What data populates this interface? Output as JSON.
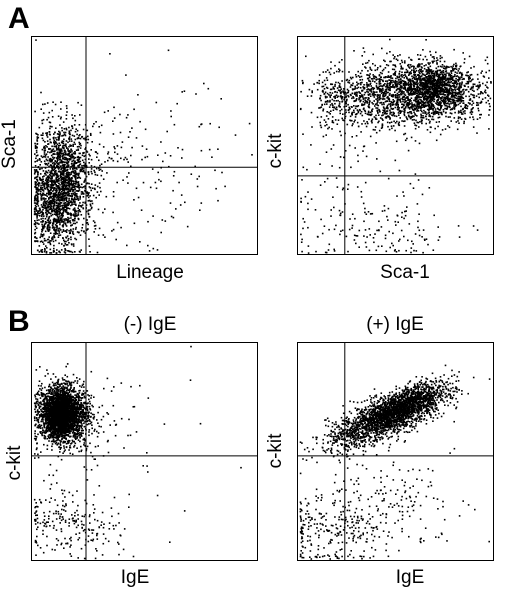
{
  "panel_letters": [
    "A",
    "B"
  ],
  "chart_data": [
    {
      "type": "scatter",
      "panel": "A",
      "title": "",
      "xlabel": "Lineage",
      "ylabel": "Sca-1",
      "xlim": [
        0,
        100
      ],
      "ylim": [
        0,
        100
      ],
      "gates": {
        "x": 24,
        "y": 40
      },
      "populations": [
        {
          "cx": 13,
          "cy": 34,
          "sx": 7,
          "sy": 13,
          "n": 1600
        },
        {
          "cx": 10,
          "cy": 18,
          "sx": 6,
          "sy": 9,
          "n": 450
        },
        {
          "cx": 40,
          "cy": 42,
          "sx": 20,
          "sy": 18,
          "n": 160
        },
        {
          "cx": 70,
          "cy": 38,
          "sx": 18,
          "sy": 20,
          "n": 35
        }
      ]
    },
    {
      "type": "scatter",
      "panel": "A",
      "title": "",
      "xlabel": "Sca-1",
      "ylabel": "c-kit",
      "xlim": [
        0,
        100
      ],
      "ylim": [
        0,
        100
      ],
      "gates": {
        "x": 24,
        "y": 36
      },
      "populations": [
        {
          "cx": 58,
          "cy": 74,
          "sx": 20,
          "sy": 7,
          "n": 1900
        },
        {
          "cx": 70,
          "cy": 78,
          "sx": 8,
          "sy": 5,
          "n": 700
        },
        {
          "cx": 20,
          "cy": 70,
          "sx": 8,
          "sy": 6,
          "n": 160
        },
        {
          "cx": 35,
          "cy": 14,
          "sx": 22,
          "sy": 10,
          "n": 170
        },
        {
          "cx": 30,
          "cy": 50,
          "sx": 18,
          "sy": 10,
          "n": 60
        }
      ]
    },
    {
      "type": "scatter",
      "panel": "B",
      "title": "(-) IgE",
      "xlabel": "IgE",
      "ylabel": "c-kit",
      "xlim": [
        0,
        100
      ],
      "ylim": [
        0,
        100
      ],
      "gates": {
        "x": 24,
        "y": 48
      },
      "populations": [
        {
          "cx": 13,
          "cy": 68,
          "sx": 5,
          "sy": 6,
          "n": 2500
        },
        {
          "cx": 12,
          "cy": 67,
          "sx": 2.5,
          "sy": 4,
          "n": 900
        },
        {
          "cx": 18,
          "cy": 65,
          "sx": 10,
          "sy": 10,
          "n": 250
        },
        {
          "cx": 15,
          "cy": 18,
          "sx": 12,
          "sy": 8,
          "n": 220
        },
        {
          "cx": 50,
          "cy": 50,
          "sx": 18,
          "sy": 25,
          "n": 25
        }
      ]
    },
    {
      "type": "scatter",
      "panel": "B",
      "title": "(+) IgE",
      "xlabel": "IgE",
      "ylabel": "c-kit",
      "xlim": [
        0,
        100
      ],
      "ylim": [
        0,
        100
      ],
      "gates": {
        "x": 24,
        "y": 48
      },
      "populations": [
        {
          "cx": 45,
          "cy": 66,
          "sx": 15,
          "sy": 7,
          "n": 1700,
          "corr": 0.75
        },
        {
          "cx": 55,
          "cy": 72,
          "sx": 10,
          "sy": 5,
          "n": 900,
          "corr": 0.7
        },
        {
          "cx": 15,
          "cy": 14,
          "sx": 13,
          "sy": 9,
          "n": 220
        },
        {
          "cx": 40,
          "cy": 25,
          "sx": 15,
          "sy": 12,
          "n": 140
        },
        {
          "cx": 65,
          "cy": 30,
          "sx": 15,
          "sy": 12,
          "n": 40
        }
      ]
    }
  ]
}
